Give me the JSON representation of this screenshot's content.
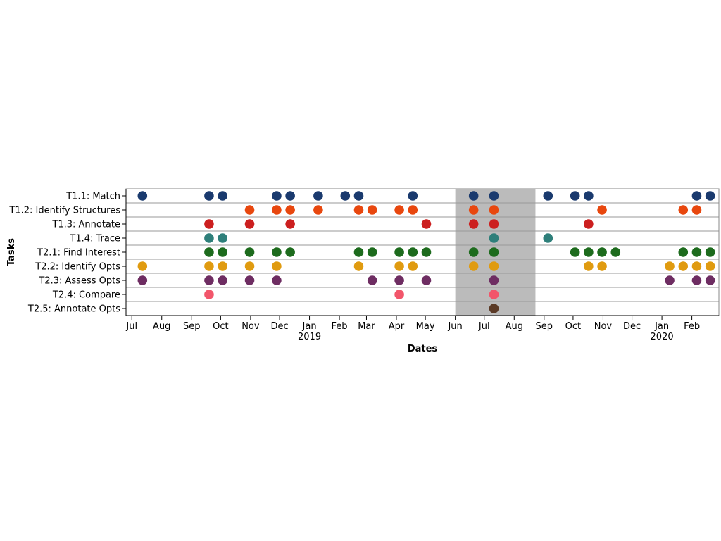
{
  "chart_data": {
    "type": "scatter",
    "xlabel": "Dates",
    "ylabel": "Tasks",
    "xlim": [
      "2018-06-25",
      "2020-02-29"
    ],
    "x_ticks": [
      "Jul",
      "Aug",
      "Sep",
      "Oct",
      "Nov",
      "Dec",
      "Jan",
      "Feb",
      "Mar",
      "Apr",
      "May",
      "Jun",
      "Jul",
      "Aug",
      "Sep",
      "Oct",
      "Nov",
      "Dec",
      "Jan",
      "Feb"
    ],
    "x_tick_dates": [
      "2018-07-01",
      "2018-08-01",
      "2018-09-01",
      "2018-10-01",
      "2018-11-01",
      "2018-12-01",
      "2019-01-01",
      "2019-02-01",
      "2019-03-01",
      "2019-04-01",
      "2019-05-01",
      "2019-06-01",
      "2019-07-01",
      "2019-08-01",
      "2019-09-01",
      "2019-10-01",
      "2019-11-01",
      "2019-12-01",
      "2020-01-01",
      "2020-02-01"
    ],
    "x_year_labels": [
      {
        "label": "2019",
        "date": "2019-01-01"
      },
      {
        "label": "2020",
        "date": "2020-01-01"
      }
    ],
    "highlight_band": {
      "start": "2019-06-01",
      "end": "2019-08-23",
      "color": "#bbbbbb"
    },
    "grid": "horizontal",
    "categories": [
      "T1.1: Match",
      "T1.2: Identify Structures",
      "T1.3: Annotate",
      "T1.4: Trace",
      "T2.1: Find Interest",
      "T2.2: Identify Opts",
      "T2.3: Assess Opts",
      "T2.4: Compare",
      "T2.5: Annotate Opts"
    ],
    "series": [
      {
        "category": "T1.1: Match",
        "color": "#1a3a6e",
        "dates": [
          "2018-07-12",
          "2018-09-19",
          "2018-10-03",
          "2018-11-28",
          "2018-12-12",
          "2019-01-10",
          "2019-02-07",
          "2019-02-21",
          "2019-04-18",
          "2019-06-20",
          "2019-07-11",
          "2019-09-05",
          "2019-10-03",
          "2019-10-17",
          "2020-02-06",
          "2020-02-20"
        ]
      },
      {
        "category": "T1.2: Identify Structures",
        "color": "#e8470e",
        "dates": [
          "2018-10-31",
          "2018-11-28",
          "2018-12-12",
          "2019-01-10",
          "2019-02-21",
          "2019-03-07",
          "2019-04-04",
          "2019-04-18",
          "2019-06-20",
          "2019-07-11",
          "2019-10-31",
          "2020-01-23",
          "2020-02-06"
        ]
      },
      {
        "category": "T1.3: Annotate",
        "color": "#cc1f1f",
        "dates": [
          "2018-09-19",
          "2018-10-31",
          "2018-12-12",
          "2019-05-02",
          "2019-06-20",
          "2019-07-11",
          "2019-10-17"
        ]
      },
      {
        "category": "T1.4: Trace",
        "color": "#2e7f7a",
        "dates": [
          "2018-09-19",
          "2018-10-03",
          "2019-07-11",
          "2019-09-05"
        ]
      },
      {
        "category": "T2.1: Find Interest",
        "color": "#1d6b1d",
        "dates": [
          "2018-09-19",
          "2018-10-03",
          "2018-10-31",
          "2018-11-28",
          "2018-12-12",
          "2019-02-21",
          "2019-03-07",
          "2019-04-04",
          "2019-04-18",
          "2019-05-02",
          "2019-06-20",
          "2019-07-11",
          "2019-10-03",
          "2019-10-17",
          "2019-10-31",
          "2019-11-14",
          "2020-01-23",
          "2020-02-06",
          "2020-02-20"
        ]
      },
      {
        "category": "T2.2: Identify Opts",
        "color": "#e09b10",
        "dates": [
          "2018-07-12",
          "2018-09-19",
          "2018-10-03",
          "2018-10-31",
          "2018-11-28",
          "2019-02-21",
          "2019-04-04",
          "2019-04-18",
          "2019-06-20",
          "2019-07-11",
          "2019-10-17",
          "2019-10-31",
          "2020-01-09",
          "2020-01-23",
          "2020-02-06",
          "2020-02-20"
        ]
      },
      {
        "category": "T2.3: Assess Opts",
        "color": "#6e2d62",
        "dates": [
          "2018-07-12",
          "2018-09-19",
          "2018-10-03",
          "2018-10-31",
          "2018-11-28",
          "2019-03-07",
          "2019-04-04",
          "2019-05-02",
          "2019-07-11",
          "2020-01-09",
          "2020-02-06",
          "2020-02-20"
        ]
      },
      {
        "category": "T2.4: Compare",
        "color": "#f2566b",
        "dates": [
          "2018-09-19",
          "2019-04-04",
          "2019-07-11"
        ]
      },
      {
        "category": "T2.5: Annotate Opts",
        "color": "#5b3a26",
        "dates": [
          "2019-07-11"
        ]
      }
    ]
  }
}
